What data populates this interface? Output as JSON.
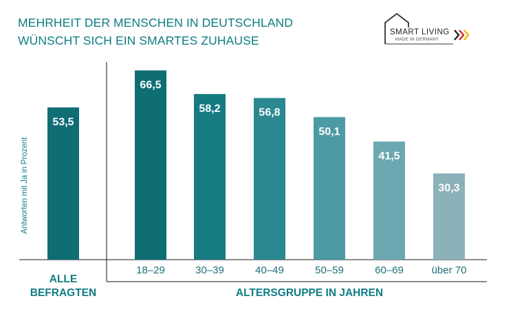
{
  "title_line1": "MEHRHEIT DER MENSCHEN IN DEUTSCHLAND",
  "title_line2": "WÜNSCHT SICH EIN SMARTES ZUHAUSE",
  "logo": {
    "main": "SMART LIVING",
    "sub": "MADE IN GERMANY"
  },
  "chart_data": {
    "type": "bar",
    "ylabel": "Antworten mit Ja in Prozent",
    "ylim": [
      0,
      70
    ],
    "grid": false,
    "groups": [
      {
        "label": "ALLE BEFRAGTEN",
        "label_lines": [
          "ALLE",
          "BEFRAGTEN"
        ],
        "categories": [
          ""
        ],
        "values": [
          53.5
        ],
        "value_labels": [
          "53,5"
        ],
        "colors": [
          "#0f6d74"
        ]
      },
      {
        "label": "ALTERSGRUPPE IN JAHREN",
        "categories": [
          "18–29",
          "30–39",
          "40–49",
          "50–59",
          "60–69",
          "über 70"
        ],
        "values": [
          66.5,
          58.2,
          56.8,
          50.1,
          41.5,
          30.3
        ],
        "value_labels": [
          "66,5",
          "58,2",
          "56,8",
          "50,1",
          "41,5",
          "30,3"
        ],
        "colors": [
          "#0f6d74",
          "#167a82",
          "#2a8891",
          "#4c9aa4",
          "#6ca8b1",
          "#8bb1b9"
        ]
      }
    ]
  }
}
